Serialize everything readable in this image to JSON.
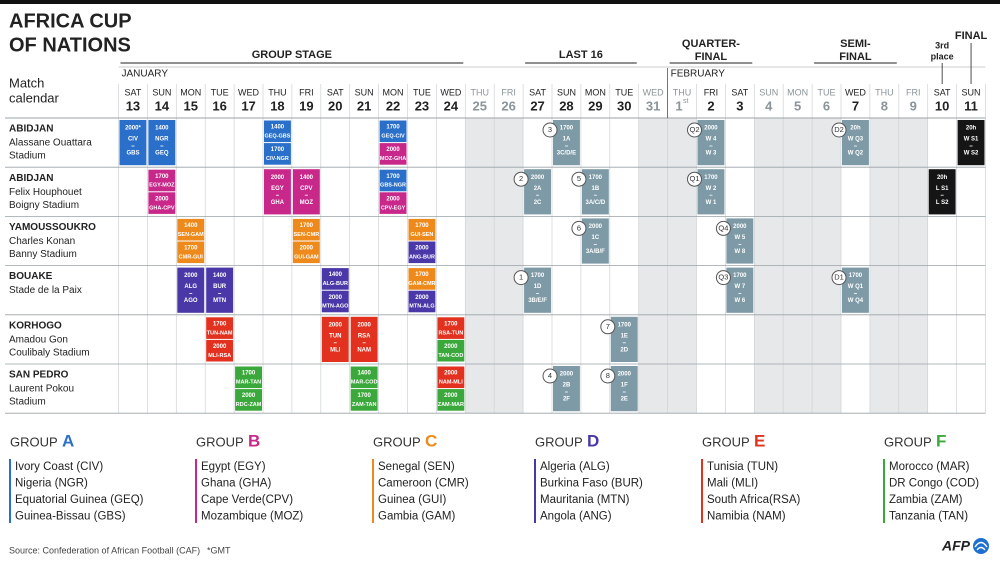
{
  "header": {
    "title_lines": [
      "AFRICA CUP",
      "OF NATIONS"
    ],
    "subtitle_lines": [
      "Match",
      "calendar"
    ]
  },
  "stages": [
    {
      "lines": [
        "GROUP STAGE"
      ]
    },
    {
      "lines": [
        "LAST 16"
      ]
    },
    {
      "lines": [
        "QUARTER-",
        "FINAL"
      ]
    },
    {
      "lines": [
        "SEMI-",
        "FINAL"
      ]
    },
    {
      "lines": [
        "3rd",
        "place"
      ]
    },
    {
      "lines": [
        "FINAL"
      ]
    }
  ],
  "months": [
    "JANUARY",
    "FEBRUARY"
  ],
  "days": [
    {
      "weekday": "SAT",
      "day": "13"
    },
    {
      "weekday": "SUN",
      "day": "14"
    },
    {
      "weekday": "MON",
      "day": "15"
    },
    {
      "weekday": "TUE",
      "day": "16"
    },
    {
      "weekday": "WED",
      "day": "17"
    },
    {
      "weekday": "THU",
      "day": "18"
    },
    {
      "weekday": "FRI",
      "day": "19"
    },
    {
      "weekday": "SAT",
      "day": "20"
    },
    {
      "weekday": "SUN",
      "day": "21"
    },
    {
      "weekday": "MON",
      "day": "22"
    },
    {
      "weekday": "TUE",
      "day": "23"
    },
    {
      "weekday": "WED",
      "day": "24"
    },
    {
      "weekday": "THU",
      "day": "25",
      "rest": true
    },
    {
      "weekday": "FRI",
      "day": "26",
      "rest": true
    },
    {
      "weekday": "SAT",
      "day": "27"
    },
    {
      "weekday": "SUN",
      "day": "28"
    },
    {
      "weekday": "MON",
      "day": "29"
    },
    {
      "weekday": "TUE",
      "day": "30"
    },
    {
      "weekday": "WED",
      "day": "31",
      "rest": true
    },
    {
      "weekday": "THU",
      "day": "1",
      "suffix": "st",
      "rest": true
    },
    {
      "weekday": "FRI",
      "day": "2"
    },
    {
      "weekday": "SAT",
      "day": "3"
    },
    {
      "weekday": "SUN",
      "day": "4",
      "rest": true
    },
    {
      "weekday": "MON",
      "day": "5",
      "rest": true
    },
    {
      "weekday": "TUE",
      "day": "6",
      "rest": true
    },
    {
      "weekday": "WED",
      "day": "7"
    },
    {
      "weekday": "THU",
      "day": "8",
      "rest": true
    },
    {
      "weekday": "FRI",
      "day": "9",
      "rest": true
    },
    {
      "weekday": "SAT",
      "day": "10"
    },
    {
      "weekday": "SUN",
      "day": "11"
    }
  ],
  "venues": [
    {
      "city": "ABIDJAN",
      "stadium_lines": [
        "Alassane Ouattara",
        "Stadium"
      ],
      "slots": [
        [
          {
            "time": "2000*",
            "teams": [
              "CIV",
              "GBS"
            ],
            "color": "#2a6fc9"
          }
        ],
        [
          {
            "time": "1400",
            "teams": [
              "NGR",
              "GEQ"
            ],
            "color": "#2a6fc9"
          }
        ],
        null,
        null,
        null,
        [
          {
            "time": "1400",
            "label": "GEQ-GBS",
            "color": "#2a6fc9"
          },
          {
            "time": "1700",
            "label": "CIV-NGR",
            "color": "#2a6fc9"
          }
        ],
        null,
        null,
        null,
        [
          {
            "time": "1700",
            "label": "GEQ-CIV",
            "color": "#2a6fc9"
          },
          {
            "time": "2000",
            "label": "MOZ-GHA",
            "color": "#c8288a"
          }
        ],
        null,
        null,
        null,
        null,
        null,
        [
          {
            "badge": "3",
            "time": "1700",
            "teams": [
              "1A",
              "3C/D/E"
            ],
            "color": "#7d9aa6"
          }
        ],
        null,
        null,
        null,
        null,
        [
          {
            "badge": "Q2",
            "time": "2000",
            "teams": [
              "W 4",
              "W 3"
            ],
            "color": "#7d9aa6"
          }
        ],
        null,
        null,
        null,
        null,
        [
          {
            "badge": "D2",
            "time": "20h",
            "teams": [
              "W Q3",
              "W Q2"
            ],
            "color": "#7d9aa6"
          }
        ],
        null,
        null,
        null,
        [
          {
            "time": "20h",
            "teams": [
              "W S1",
              "W S2"
            ],
            "color": "#151515"
          }
        ]
      ]
    },
    {
      "city": "ABIDJAN",
      "stadium_lines": [
        "Felix Houphouet",
        "Boigny Stadium"
      ],
      "slots": [
        null,
        [
          {
            "time": "1700",
            "label": "EGY-MOZ",
            "color": "#c8288a"
          },
          {
            "time": "2000",
            "label": "GHA-CPV",
            "color": "#c8288a"
          }
        ],
        null,
        null,
        null,
        [
          {
            "time": "2000",
            "teams": [
              "EGY",
              "GHA"
            ],
            "color": "#c8288a"
          }
        ],
        [
          {
            "time": "1400",
            "teams": [
              "CPV",
              "MOZ"
            ],
            "color": "#c8288a"
          }
        ],
        null,
        null,
        [
          {
            "time": "1700",
            "label": "GBS-NGR",
            "color": "#2a6fc9"
          },
          {
            "time": "2000",
            "label": "CPV-EGY",
            "color": "#c8288a"
          }
        ],
        null,
        null,
        null,
        null,
        [
          {
            "badge": "2",
            "time": "2000",
            "teams": [
              "2A",
              "2C"
            ],
            "color": "#7d9aa6"
          }
        ],
        null,
        [
          {
            "badge": "5",
            "time": "1700",
            "teams": [
              "1B",
              "3A/C/D"
            ],
            "color": "#7d9aa6"
          }
        ],
        null,
        null,
        null,
        [
          {
            "badge": "Q1",
            "time": "1700",
            "teams": [
              "W 2",
              "W 1"
            ],
            "color": "#7d9aa6"
          }
        ],
        null,
        null,
        null,
        null,
        null,
        null,
        null,
        [
          {
            "time": "20h",
            "teams": [
              "L S1",
              "L S2"
            ],
            "color": "#151515"
          }
        ],
        null
      ]
    },
    {
      "city": "YAMOUSSOUKRO",
      "stadium_lines": [
        "Charles Konan",
        "Banny Stadium"
      ],
      "slots": [
        null,
        null,
        [
          {
            "time": "1400",
            "label": "SEN-GAM",
            "color": "#ee8a1c"
          },
          {
            "time": "1700",
            "label": "CMR-GUI",
            "color": "#ee8a1c"
          }
        ],
        null,
        null,
        null,
        [
          {
            "time": "1700",
            "label": "SEN-CMR",
            "color": "#ee8a1c"
          },
          {
            "time": "2000",
            "label": "GUI-GAM",
            "color": "#ee8a1c"
          }
        ],
        null,
        null,
        null,
        [
          {
            "time": "1700",
            "label": "GUI-SEN",
            "color": "#ee8a1c"
          },
          {
            "time": "2000",
            "label": "ANG-BUR",
            "color": "#4a38a8"
          }
        ],
        null,
        null,
        null,
        null,
        null,
        [
          {
            "badge": "6",
            "time": "2000",
            "teams": [
              "1C",
              "3A/B/F"
            ],
            "color": "#7d9aa6"
          }
        ],
        null,
        null,
        null,
        null,
        [
          {
            "badge": "Q4",
            "time": "2000",
            "teams": [
              "W 5",
              "W 8"
            ],
            "color": "#7d9aa6"
          }
        ],
        null,
        null,
        null,
        null,
        null,
        null,
        null,
        null
      ]
    },
    {
      "city": "BOUAKE",
      "stadium_lines": [
        "Stade de la Paix"
      ],
      "slots": [
        null,
        null,
        [
          {
            "time": "2000",
            "teams": [
              "ALG",
              "AGO"
            ],
            "color": "#4a38a8"
          }
        ],
        [
          {
            "time": "1400",
            "teams": [
              "BUR",
              "MTN"
            ],
            "color": "#4a38a8"
          }
        ],
        null,
        null,
        null,
        [
          {
            "time": "1400",
            "label": "ALG-BUR",
            "color": "#4a38a8"
          },
          {
            "time": "2000",
            "label": "MTN-AGO",
            "color": "#4a38a8"
          }
        ],
        null,
        null,
        [
          {
            "time": "1700",
            "label": "GAM-CMR",
            "color": "#ee8a1c"
          },
          {
            "time": "2000",
            "label": "MTN-ALG",
            "color": "#4a38a8"
          }
        ],
        null,
        null,
        null,
        [
          {
            "badge": "1",
            "time": "1700",
            "teams": [
              "1D",
              "3B/E/F"
            ],
            "color": "#7d9aa6"
          }
        ],
        null,
        null,
        null,
        null,
        null,
        null,
        [
          {
            "badge": "Q3",
            "time": "1700",
            "teams": [
              "W 7",
              "W 6"
            ],
            "color": "#7d9aa6"
          }
        ],
        null,
        null,
        null,
        [
          {
            "badge": "D1",
            "time": "1700",
            "teams": [
              "W Q1",
              "W Q4"
            ],
            "color": "#7d9aa6"
          }
        ],
        null,
        null,
        null,
        null
      ]
    },
    {
      "city": "KORHOGO",
      "stadium_lines": [
        "Amadou Gon",
        "Coulibaly Stadium"
      ],
      "slots": [
        null,
        null,
        null,
        [
          {
            "time": "1700",
            "label": "TUN-NAM",
            "color": "#e2321f"
          },
          {
            "time": "2000",
            "label": "MLI-RSA",
            "color": "#e2321f"
          }
        ],
        null,
        null,
        null,
        [
          {
            "time": "2000",
            "teams": [
              "TUN",
              "MLI"
            ],
            "color": "#e2321f"
          }
        ],
        [
          {
            "time": "2000",
            "teams": [
              "RSA",
              "NAM"
            ],
            "color": "#e2321f"
          }
        ],
        null,
        null,
        [
          {
            "time": "1700",
            "label": "RSA-TUN",
            "color": "#e2321f"
          },
          {
            "time": "2000",
            "label": "TAN-COD",
            "color": "#3aa83a"
          }
        ],
        null,
        null,
        null,
        null,
        null,
        [
          {
            "badge": "7",
            "time": "1700",
            "teams": [
              "1E",
              "2D"
            ],
            "color": "#7d9aa6"
          }
        ],
        null,
        null,
        null,
        null,
        null,
        null,
        null,
        null,
        null,
        null,
        null,
        null
      ]
    },
    {
      "city": "SAN PEDRO",
      "stadium_lines": [
        "Laurent Pokou",
        "Stadium"
      ],
      "slots": [
        null,
        null,
        null,
        null,
        [
          {
            "time": "1700",
            "label": "MAR-TAN",
            "color": "#3aa83a"
          },
          {
            "time": "2000",
            "label": "RDC-ZAM",
            "color": "#3aa83a"
          }
        ],
        null,
        null,
        null,
        [
          {
            "time": "1400",
            "label": "MAR-COD",
            "color": "#3aa83a"
          },
          {
            "time": "1700",
            "label": "ZAM-TAN",
            "color": "#3aa83a"
          }
        ],
        null,
        null,
        [
          {
            "time": "2000",
            "label": "NAM-MLI",
            "color": "#e2321f"
          },
          {
            "time": "2000",
            "label": "ZAM-MAR",
            "color": "#3aa83a"
          }
        ],
        null,
        null,
        null,
        [
          {
            "badge": "4",
            "time": "2000",
            "teams": [
              "2B",
              "2F"
            ],
            "color": "#7d9aa6"
          }
        ],
        null,
        [
          {
            "badge": "8",
            "time": "2000",
            "teams": [
              "1F",
              "2E"
            ],
            "color": "#7d9aa6"
          }
        ],
        null,
        null,
        null,
        null,
        null,
        null,
        null,
        null,
        null,
        null,
        null,
        null
      ]
    }
  ],
  "groups": [
    {
      "label": "GROUP",
      "letter": "A",
      "color": "#2a6fc9",
      "teams": [
        "Ivory Coast (CIV)",
        "Nigeria (NGR)",
        "Equatorial Guinea (GEQ)",
        "Guinea-Bissau (GBS)"
      ]
    },
    {
      "label": "GROUP",
      "letter": "B",
      "color": "#c8288a",
      "teams": [
        "Egypt (EGY)",
        "Ghana (GHA)",
        "Cape Verde(CPV)",
        "Mozambique (MOZ)"
      ]
    },
    {
      "label": "GROUP",
      "letter": "C",
      "color": "#ee8a1c",
      "teams": [
        "Senegal (SEN)",
        "Cameroon (CMR)",
        "Guinea (GUI)",
        "Gambia (GAM)"
      ]
    },
    {
      "label": "GROUP",
      "letter": "D",
      "color": "#4a38a8",
      "teams": [
        "Algeria (ALG)",
        "Burkina Faso (BUR)",
        "Mauritania (MTN)",
        "Angola (ANG)"
      ]
    },
    {
      "label": "GROUP",
      "letter": "E",
      "color": "#e2321f",
      "teams": [
        "Tunisia (TUN)",
        "Mali (MLI)",
        "South Africa(RSA)",
        "Namibia (NAM)"
      ]
    },
    {
      "label": "GROUP",
      "letter": "F",
      "color": "#3aa83a",
      "teams": [
        "Morocco (MAR)",
        "DR Congo (COD)",
        "Zambia (ZAM)",
        "Tanzania (TAN)"
      ]
    }
  ],
  "footer": {
    "source": "Source: Confederation of African Football (CAF)",
    "note": "*GMT",
    "logo": "AFP"
  }
}
